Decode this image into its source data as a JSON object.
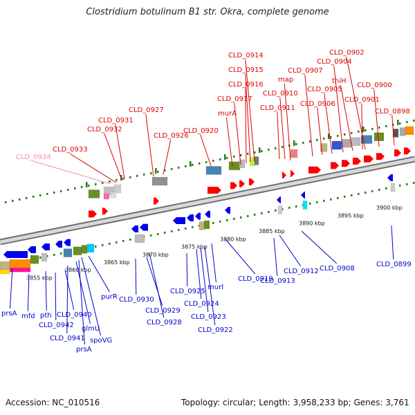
{
  "title": "Clostridium botulinum B1 str. Okra, complete genome",
  "footer": {
    "accession": "Accession: NC_010516",
    "summary": "Topology: circular; Length: 3,958,233 bp; Genes: 3,761"
  },
  "colors": {
    "top_label": "#dd0000",
    "top_label_faded": "#f090b0",
    "bottom_label": "#0000cc",
    "backbone": "#a0a0a0",
    "tick": "#2a7a1a",
    "arrow_forward": "#ff0000",
    "arrow_reverse": "#0000ee"
  },
  "kbp_labels": [
    "3855 kbp",
    "3860 kbp",
    "3865 kbp",
    "3870 kbp",
    "3875 kbp",
    "3880 kbp",
    "3885 kbp",
    "3890 kbp",
    "3895 kbp",
    "3900 kbp"
  ],
  "top_genes": [
    "CLD_0934",
    "CLD_0933",
    "CLD_0932",
    "CLD_0931",
    "CLD_0927",
    "CLD_0926",
    "CLD_0920",
    "CLD_0914",
    "CLD_0915",
    "CLD_0916",
    "CLD_0917",
    "murA",
    "map",
    "CLD_0910",
    "CLD_0911",
    "CLD_0907",
    "CLD_0906",
    "CLD_0905",
    "CLD_0904",
    "thiH",
    "CLD_0902",
    "CLD_0901",
    "CLD_0900",
    "CLD_0898"
  ],
  "bottom_genes": [
    "prsA",
    "mfd",
    "pth",
    "CLD_0942",
    "CLD_0940",
    "CLD_0941",
    "glmU",
    "prsA",
    "spoVG",
    "purR",
    "CLD_0930",
    "CLD_0929",
    "CLD_0928",
    "CLD_0925",
    "CLD_0924",
    "CLD_0923",
    "CLD_0922",
    "murI",
    "CLD_0919",
    "CLD_0913",
    "CLD_0912",
    "CLD_0908",
    "CLD_0899"
  ]
}
